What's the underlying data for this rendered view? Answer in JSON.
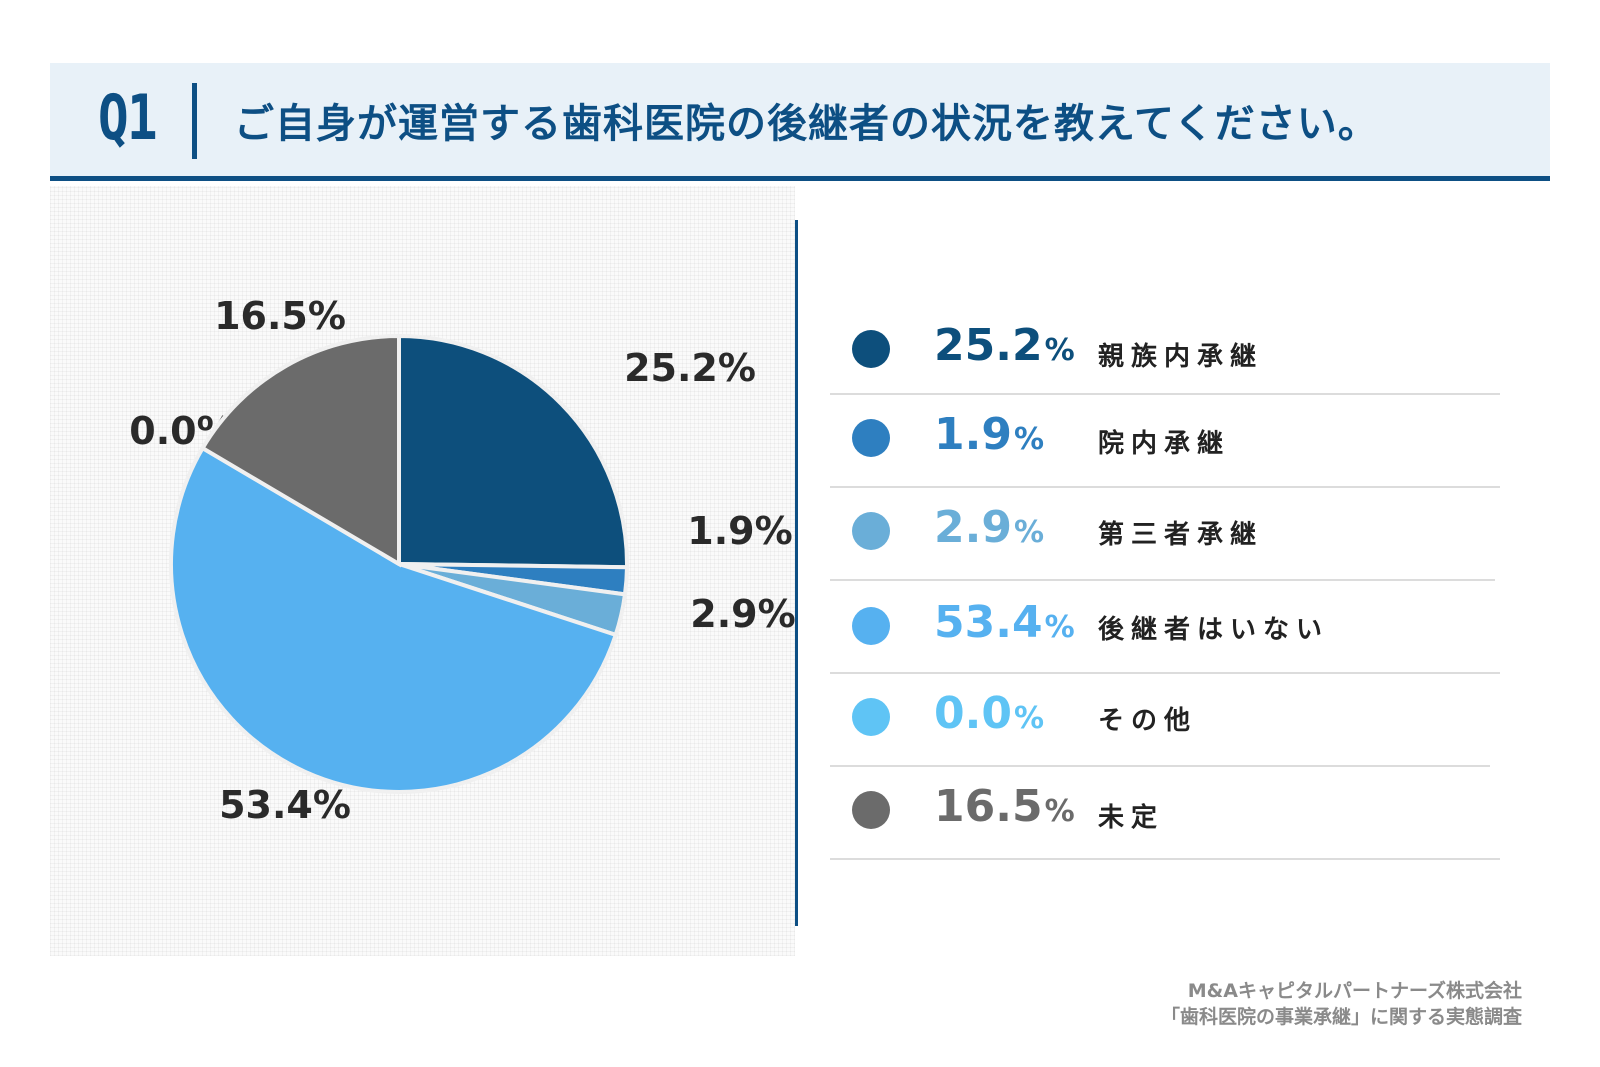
{
  "header": {
    "q_number": "Q1",
    "question": "ご自身が運営する歯科医院の後継者の状況を教えてください。"
  },
  "chart_data": {
    "type": "pie",
    "slices": [
      {
        "label": "親族内承継",
        "value": 25.2,
        "display": "25.2%",
        "color": "#0d4f7c"
      },
      {
        "label": "院内承継",
        "value": 1.9,
        "display": "1.9%",
        "color": "#2e7fc0"
      },
      {
        "label": "第三者承継",
        "value": 2.9,
        "display": "2.9%",
        "color": "#6aaed8"
      },
      {
        "label": "後継者はいない",
        "value": 53.4,
        "display": "53.4%",
        "color": "#56b1f0"
      },
      {
        "label": "その他",
        "value": 0.0,
        "display": "0.0%",
        "color": "#5fc4f5"
      },
      {
        "label": "未定",
        "value": 16.5,
        "display": "16.5%",
        "color": "#6b6b6b"
      }
    ],
    "legend_placement": "right"
  },
  "legend": {
    "percent_sign": "%",
    "items": [
      {
        "number": "25.2",
        "label": "親族内承継",
        "color": "#0d4f7c"
      },
      {
        "number": "1.9",
        "label": "院内承継",
        "color": "#2e7fc0"
      },
      {
        "number": "2.9",
        "label": "第三者承継",
        "color": "#6aaed8"
      },
      {
        "number": "53.4",
        "label": "後継者はいない",
        "color": "#56b1f0"
      },
      {
        "number": "0.0",
        "label": "その他",
        "color": "#5fc4f5"
      },
      {
        "number": "16.5",
        "label": "未定",
        "color": "#6b6b6b"
      }
    ]
  },
  "source": {
    "line1": "M&Aキャピタルパートナーズ株式会社",
    "line2": "「歯科医院の事業承継」に関する実態調査"
  }
}
